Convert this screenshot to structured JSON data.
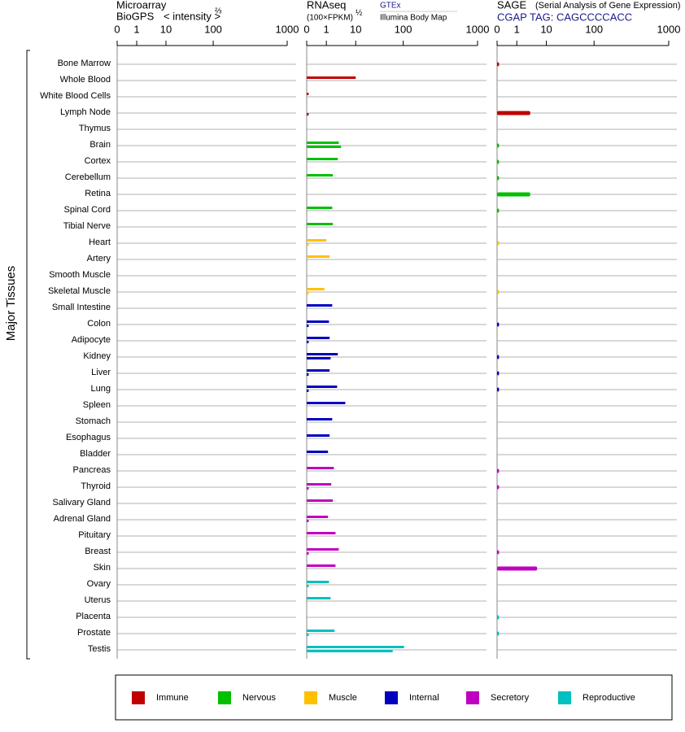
{
  "chart_data": [
    {
      "type": "bar",
      "title": "Microarray",
      "subtitle": "BioGPS",
      "xlabel": "< intensity >",
      "xlabel_exponent": "⅔",
      "ylabel": "Major Tissues",
      "categories": [
        "Bone Marrow",
        "Whole Blood",
        "White Blood Cells",
        "Lymph Node",
        "Thymus",
        "Brain",
        "Cortex",
        "Cerebellum",
        "Retina",
        "Spinal Cord",
        "Tibial Nerve",
        "Heart",
        "Artery",
        "Smooth Muscle",
        "Skeletal Muscle",
        "Small Intestine",
        "Colon",
        "Adipocyte",
        "Kidney",
        "Liver",
        "Lung",
        "Spleen",
        "Stomach",
        "Esophagus",
        "Bladder",
        "Pancreas",
        "Thyroid",
        "Salivary Gland",
        "Adrenal Gland",
        "Pituitary",
        "Breast",
        "Skin",
        "Ovary",
        "Uterus",
        "Placenta",
        "Prostate",
        "Testis"
      ],
      "category_colors": [
        "#c00000",
        "#c00000",
        "#c00000",
        "#c00000",
        "#c00000",
        "#00c000",
        "#00c000",
        "#00c000",
        "#00c000",
        "#00c000",
        "#00c000",
        "#ffc000",
        "#ffc000",
        "#ffc000",
        "#ffc000",
        "#0000c0",
        "#0000c0",
        "#0000c0",
        "#0000c0",
        "#0000c0",
        "#0000c0",
        "#0000c0",
        "#0000c0",
        "#0000c0",
        "#0000c0",
        "#c000c0",
        "#c000c0",
        "#c000c0",
        "#c000c0",
        "#c000c0",
        "#c000c0",
        "#c000c0",
        "#00c0c0",
        "#00c0c0",
        "#00c0c0",
        "#00c0c0",
        "#00c0c0"
      ],
      "legend": [
        {
          "name": "Immune",
          "color": "#c00000"
        },
        {
          "name": "Nervous",
          "color": "#00c000"
        },
        {
          "name": "Muscle",
          "color": "#ffc000"
        },
        {
          "name": "Internal",
          "color": "#0000c0"
        },
        {
          "name": "Secretory",
          "color": "#c000c0"
        },
        {
          "name": "Reproductive",
          "color": "#00c0c0"
        }
      ],
      "xlim": [
        0,
        1000
      ],
      "xticks": [
        0,
        1,
        10,
        100,
        1000
      ],
      "series": []
    },
    {
      "type": "bar",
      "title": "RNAseq",
      "xlabel": "(100×FPKM)",
      "xlabel_exponent": "½",
      "xlim": [
        0,
        1000
      ],
      "xticks": [
        0,
        1,
        10,
        100,
        1000
      ],
      "series": [
        {
          "name": "GTEx",
          "values": [
            null,
            10,
            0.1,
            null,
            null,
            4.8,
            4.5,
            3,
            null,
            2.8,
            3,
            1,
            2,
            null,
            0.9,
            2.8,
            1.8,
            2,
            4.5,
            2,
            4.3,
            6.8,
            2.8,
            2,
            1.5,
            3.3,
            2.5,
            3,
            1.5,
            3.8,
            4.8,
            3.8,
            1.8,
            2.3,
            null,
            3.5,
            110
          ]
        },
        {
          "name": "Illumina Body Map",
          "values": [
            null,
            null,
            null,
            0.1,
            null,
            5.5,
            null,
            null,
            null,
            null,
            null,
            0.1,
            null,
            null,
            0.1,
            null,
            0.1,
            0.1,
            2.3,
            0.1,
            0.1,
            null,
            null,
            null,
            null,
            null,
            0.1,
            null,
            0.1,
            null,
            0.1,
            null,
            0.1,
            null,
            null,
            0.1,
            80
          ]
        }
      ]
    },
    {
      "type": "bar",
      "title": "SAGE",
      "subtitle": "(Serial Analysis of Gene Expression)",
      "tag": "CGAP TAG: CAGCCCCACC",
      "xlim": [
        0,
        1000
      ],
      "xticks": [
        0,
        1,
        10,
        100,
        1000
      ],
      "series": [
        {
          "values": [
            0.1,
            null,
            null,
            5.1,
            null,
            0.1,
            0.1,
            0.1,
            5.1,
            0.1,
            null,
            0.1,
            null,
            null,
            0.1,
            null,
            0.1,
            null,
            0.1,
            0.1,
            0.1,
            null,
            null,
            null,
            null,
            0.1,
            0.1,
            null,
            null,
            null,
            0.1,
            7.2,
            null,
            null,
            0.1,
            0.1,
            null
          ]
        }
      ]
    }
  ]
}
